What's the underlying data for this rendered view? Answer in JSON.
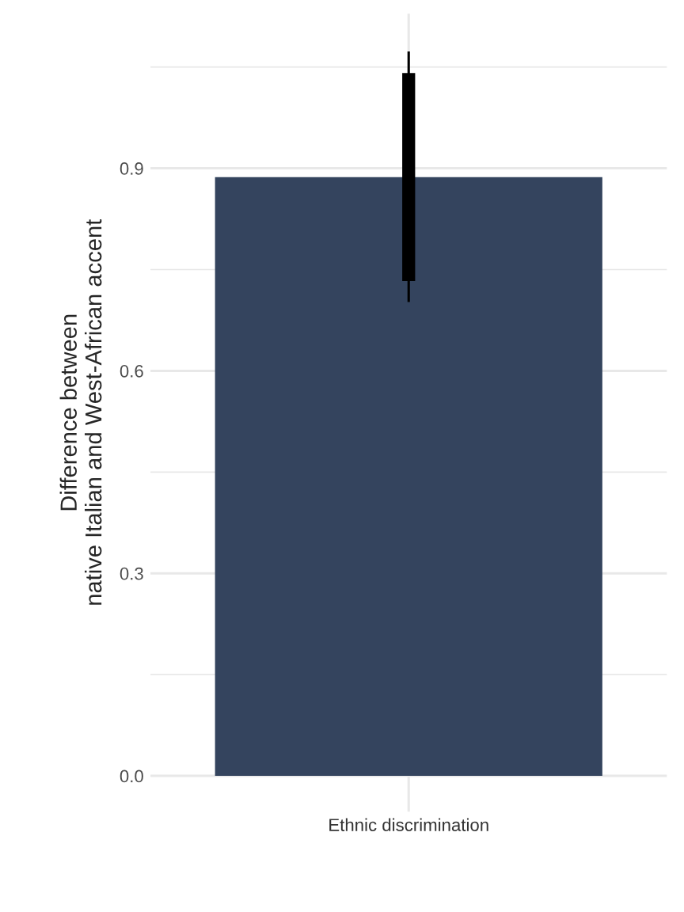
{
  "chart_data": {
    "type": "bar",
    "ylabel": "Difference between\nnative Italian and West-African accent",
    "categories": [
      "Ethnic discrimination"
    ],
    "series": [
      {
        "color": "#34445e",
        "values": [
          0.887
        ],
        "errors": [
          [
            0.702,
            1.073
          ]
        ]
      },
      {
        "color": "#000000",
        "base": [
          0.733
        ],
        "values": [
          0.308
        ]
      }
    ],
    "ylim": [
      -0.053,
      1.129
    ],
    "yticks": [
      {
        "value": 0.0,
        "label": "0.0"
      },
      {
        "value": 0.15,
        "label": null
      },
      {
        "value": 0.3,
        "label": "0.3"
      },
      {
        "value": 0.45,
        "label": null
      },
      {
        "value": 0.6,
        "label": "0.6"
      },
      {
        "value": 0.75,
        "label": null
      },
      {
        "value": 0.9,
        "label": "0.9"
      },
      {
        "value": 1.05,
        "label": null
      }
    ],
    "grid": true
  }
}
